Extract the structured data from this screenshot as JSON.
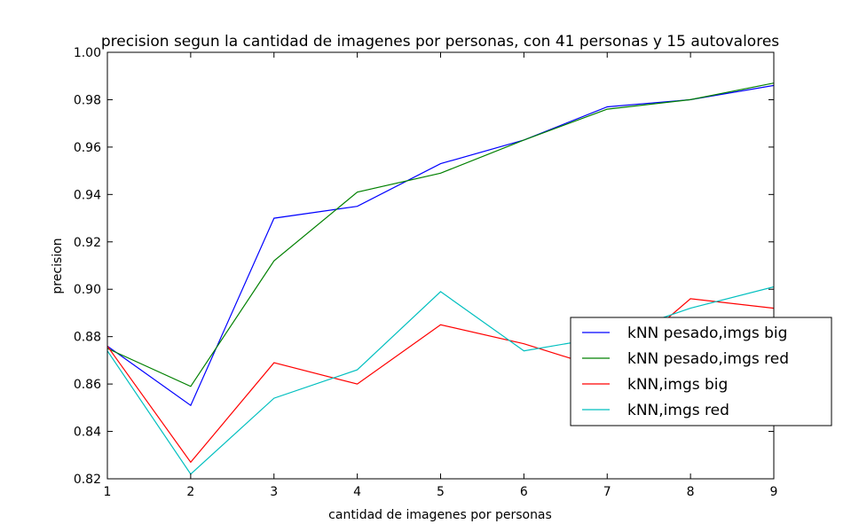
{
  "chart_data": {
    "type": "line",
    "title": "precision segun la cantidad de imagenes por personas, con 41 personas y 15 autovalores",
    "xlabel": "cantidad de imagenes por personas",
    "ylabel": "precision",
    "xlim": [
      1,
      9
    ],
    "ylim": [
      0.82,
      1.0
    ],
    "xticks": [
      1,
      2,
      3,
      4,
      5,
      6,
      7,
      8,
      9
    ],
    "xtick_labels": [
      "1",
      "2",
      "3",
      "4",
      "5",
      "6",
      "7",
      "8",
      "9"
    ],
    "yticks": [
      0.82,
      0.84,
      0.86,
      0.88,
      0.9,
      0.92,
      0.94,
      0.96,
      0.98,
      1.0
    ],
    "ytick_labels": [
      "0.82",
      "0.84",
      "0.86",
      "0.88",
      "0.90",
      "0.92",
      "0.94",
      "0.96",
      "0.98",
      "1.00"
    ],
    "grid": false,
    "legend_position": "right",
    "x": [
      1,
      2,
      3,
      4,
      5,
      6,
      7,
      8,
      9
    ],
    "series": [
      {
        "name": "kNN pesado,imgs big",
        "color": "#0000ff",
        "values": [
          0.876,
          0.851,
          0.93,
          0.935,
          0.953,
          0.963,
          0.977,
          0.98,
          0.986
        ]
      },
      {
        "name": "kNN pesado,imgs red",
        "color": "#008000",
        "values": [
          0.875,
          0.859,
          0.912,
          0.941,
          0.949,
          0.963,
          0.976,
          0.98,
          0.987
        ]
      },
      {
        "name": "kNN,imgs big",
        "color": "#ff0000",
        "values": [
          0.876,
          0.827,
          0.869,
          0.86,
          0.885,
          0.877,
          0.866,
          0.896,
          0.892
        ]
      },
      {
        "name": "kNN,imgs red",
        "color": "#00bfbf",
        "values": [
          0.874,
          0.822,
          0.854,
          0.866,
          0.899,
          0.874,
          0.88,
          0.892,
          0.901
        ]
      }
    ]
  }
}
